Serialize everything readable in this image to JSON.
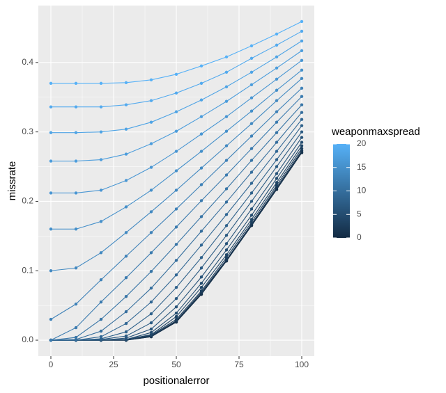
{
  "chart_data": {
    "type": "line",
    "x_label": "positionalerror",
    "y_label": "missrate",
    "x": [
      0,
      10,
      20,
      30,
      40,
      50,
      60,
      70,
      80,
      90,
      100
    ],
    "xlim": [
      -5,
      105
    ],
    "ylim": [
      -0.023,
      0.482
    ],
    "xticks": [
      0,
      25,
      50,
      75,
      100
    ],
    "yticks": [
      {
        "value": 0,
        "label": "0.0"
      },
      {
        "value": 0.1,
        "label": "0.1"
      },
      {
        "value": 0.2,
        "label": "0.2"
      },
      {
        "value": 0.3,
        "label": "0.3"
      },
      {
        "value": 0.4,
        "label": "0.4"
      }
    ],
    "grid": true,
    "colorbar": {
      "title": "weaponmaxspread",
      "lim": [
        0,
        20
      ],
      "ticks": [
        0,
        5,
        10,
        15,
        20
      ],
      "low": "#132B43",
      "high": "#56B1F7"
    },
    "series": [
      {
        "level": 0,
        "values": [
          0,
          0,
          0,
          0,
          0.005,
          0.026,
          0.066,
          0.114,
          0.165,
          0.217,
          0.27
        ]
      },
      {
        "level": 1,
        "values": [
          0,
          0,
          0,
          0,
          0.005,
          0.027,
          0.067,
          0.115,
          0.166,
          0.218,
          0.271
        ]
      },
      {
        "level": 2,
        "values": [
          0,
          0,
          0,
          0,
          0.006,
          0.028,
          0.069,
          0.116,
          0.167,
          0.22,
          0.273
        ]
      },
      {
        "level": 3,
        "values": [
          0,
          0,
          0,
          0,
          0.007,
          0.03,
          0.071,
          0.119,
          0.17,
          0.223,
          0.276
        ]
      },
      {
        "level": 4,
        "values": [
          0,
          0,
          0,
          0.001,
          0.008,
          0.034,
          0.076,
          0.123,
          0.174,
          0.227,
          0.28
        ]
      },
      {
        "level": 5,
        "values": [
          0,
          0,
          0,
          0.001,
          0.011,
          0.039,
          0.082,
          0.13,
          0.18,
          0.233,
          0.285
        ]
      },
      {
        "level": 6,
        "values": [
          0,
          0,
          0,
          0.003,
          0.016,
          0.048,
          0.091,
          0.139,
          0.189,
          0.24,
          0.292
        ]
      },
      {
        "level": 7,
        "values": [
          0,
          0,
          0.001,
          0.006,
          0.025,
          0.06,
          0.104,
          0.151,
          0.2,
          0.25,
          0.3
        ]
      },
      {
        "level": 8,
        "values": [
          0,
          0,
          0.002,
          0.012,
          0.038,
          0.076,
          0.119,
          0.165,
          0.212,
          0.26,
          0.309
        ]
      },
      {
        "level": 9,
        "values": [
          0,
          0,
          0.005,
          0.024,
          0.055,
          0.094,
          0.137,
          0.181,
          0.226,
          0.272,
          0.318
        ]
      },
      {
        "level": 10,
        "values": [
          0,
          0.001,
          0.013,
          0.041,
          0.075,
          0.115,
          0.157,
          0.199,
          0.242,
          0.285,
          0.328
        ]
      },
      {
        "level": 11,
        "values": [
          0,
          0.004,
          0.03,
          0.063,
          0.099,
          0.138,
          0.178,
          0.218,
          0.259,
          0.299,
          0.339
        ]
      },
      {
        "level": 12,
        "values": [
          0,
          0.018,
          0.055,
          0.09,
          0.126,
          0.163,
          0.201,
          0.238,
          0.276,
          0.314,
          0.351
        ]
      },
      {
        "level": 13,
        "values": [
          0.03,
          0.052,
          0.087,
          0.121,
          0.155,
          0.189,
          0.224,
          0.259,
          0.294,
          0.329,
          0.363
        ]
      },
      {
        "level": 14,
        "values": [
          0.1,
          0.104,
          0.126,
          0.155,
          0.185,
          0.216,
          0.248,
          0.28,
          0.312,
          0.345,
          0.377
        ]
      },
      {
        "level": 15,
        "values": [
          0.16,
          0.16,
          0.171,
          0.192,
          0.216,
          0.244,
          0.272,
          0.301,
          0.33,
          0.36,
          0.389
        ]
      },
      {
        "level": 16,
        "values": [
          0.212,
          0.212,
          0.216,
          0.23,
          0.249,
          0.272,
          0.297,
          0.322,
          0.349,
          0.376,
          0.403
        ]
      },
      {
        "level": 17,
        "values": [
          0.258,
          0.258,
          0.26,
          0.268,
          0.283,
          0.301,
          0.322,
          0.344,
          0.368,
          0.392,
          0.417
        ]
      },
      {
        "level": 18,
        "values": [
          0.299,
          0.299,
          0.3,
          0.304,
          0.314,
          0.329,
          0.346,
          0.365,
          0.386,
          0.408,
          0.431
        ]
      },
      {
        "level": 19,
        "values": [
          0.336,
          0.336,
          0.336,
          0.339,
          0.345,
          0.356,
          0.37,
          0.386,
          0.406,
          0.425,
          0.445
        ]
      },
      {
        "level": 20,
        "values": [
          0.37,
          0.37,
          0.37,
          0.371,
          0.375,
          0.383,
          0.395,
          0.408,
          0.424,
          0.441,
          0.459
        ]
      }
    ]
  }
}
